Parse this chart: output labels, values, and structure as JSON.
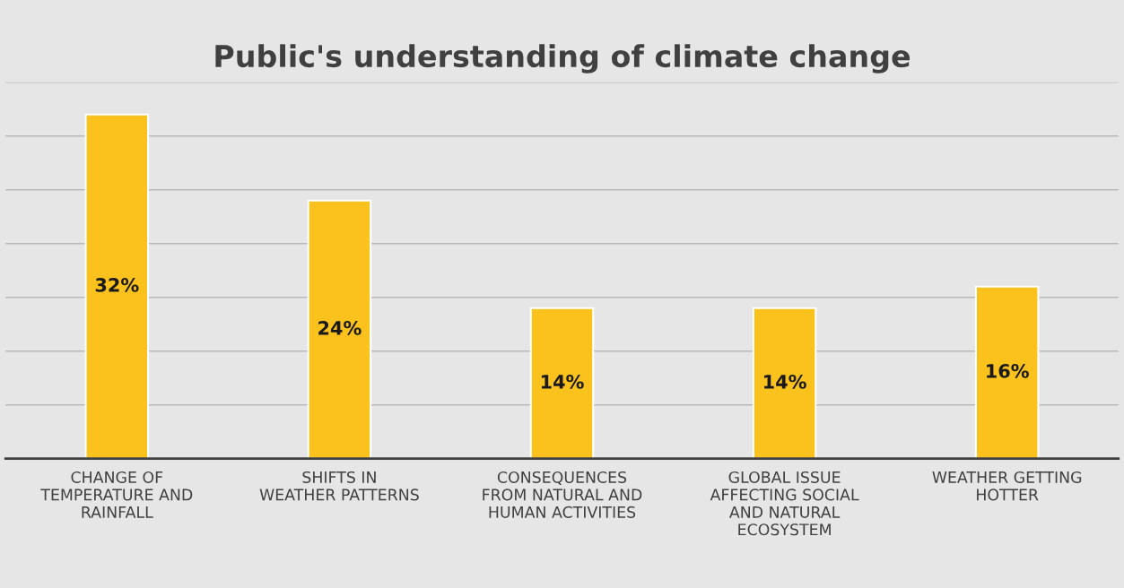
{
  "chart_data": {
    "type": "bar",
    "title": "Public's understanding of climate change",
    "categories": [
      "CHANGE OF\nTEMPERATURE AND\nRAINFALL",
      "SHIFTS IN\nWEATHER PATTERNS",
      "CONSEQUENCES\nFROM NATURAL AND\nHUMAN ACTIVITIES",
      "GLOBAL ISSUE\nAFFECTING SOCIAL\nAND NATURAL\nECOSYSTEM",
      "WEATHER GETTING\nHOTTER"
    ],
    "values": [
      32,
      24,
      14,
      14,
      16
    ],
    "value_labels": [
      "32%",
      "24%",
      "14%",
      "14%",
      "16%"
    ],
    "color": "#fbc21d",
    "ylim": [
      0,
      35
    ],
    "yticks": [
      {
        "value": 0,
        "label": null
      },
      {
        "value": 5,
        "label": null
      },
      {
        "value": 10,
        "label": null
      },
      {
        "value": 15,
        "label": null
      },
      {
        "value": 20,
        "label": null
      },
      {
        "value": 25,
        "label": null
      },
      {
        "value": 30,
        "label": null
      },
      {
        "value": 35,
        "label": null
      }
    ],
    "tick_labels": "x",
    "grid": "y",
    "legend": false
  }
}
